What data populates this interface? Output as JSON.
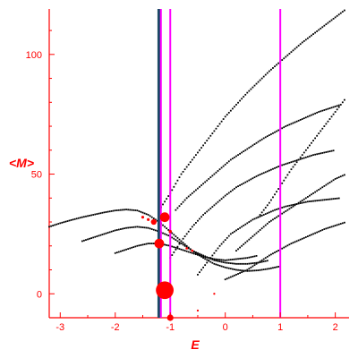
{
  "chart_data": {
    "type": "scatter",
    "xlabel": "E",
    "ylabel": "<M>",
    "xlim": [
      -3.2,
      2.25
    ],
    "ylim": [
      -10,
      119
    ],
    "x_ticks": [
      -3,
      -2,
      -1,
      0,
      1,
      2
    ],
    "y_ticks": [
      0,
      50,
      100
    ],
    "colors": {
      "axis": "#ff0000",
      "points": "#000000",
      "bubbles": "#ff0000",
      "line_thick": "#1a4a66",
      "line_accent": "#ff00ff"
    },
    "vertical_lines": [
      {
        "x": -1.2,
        "color": "#1a4a66",
        "style": "thick"
      },
      {
        "x": -1.17,
        "color": "#ff00ff",
        "style": "thin"
      },
      {
        "x": -1.0,
        "color": "#ff00ff",
        "style": "thin"
      },
      {
        "x": 1.0,
        "color": "#ff00ff",
        "style": "thin"
      }
    ],
    "bubbles": [
      {
        "x": -1.1,
        "y": 1.5,
        "r": 2.2
      },
      {
        "x": -1.1,
        "y": 32,
        "r": 1.2
      },
      {
        "x": -1.2,
        "y": 21,
        "r": 1.2
      },
      {
        "x": -1.3,
        "y": 30,
        "r": 0.7
      },
      {
        "x": -1.0,
        "y": -10,
        "r": 0.8
      },
      {
        "x": -1.0,
        "y": 26,
        "r": 0.4
      },
      {
        "x": -1.5,
        "y": 32,
        "r": 0.35
      },
      {
        "x": -1.4,
        "y": 31,
        "r": 0.35
      },
      {
        "x": -0.7,
        "y": 19,
        "r": 0.3
      },
      {
        "x": -0.6,
        "y": 18,
        "r": 0.3
      },
      {
        "x": -0.2,
        "y": 0,
        "r": 0.25
      },
      {
        "x": -0.5,
        "y": -7,
        "r": 0.25
      }
    ],
    "series": [
      {
        "points": [
          [
            -3.2,
            28
          ],
          [
            -3.0,
            29.5
          ],
          [
            -2.8,
            30.8
          ],
          [
            -2.6,
            32
          ],
          [
            -2.4,
            33
          ],
          [
            -2.2,
            34
          ],
          [
            -2.0,
            34.8
          ],
          [
            -1.8,
            35.2
          ],
          [
            -1.6,
            34.8
          ],
          [
            -1.4,
            33
          ],
          [
            -1.2,
            30
          ],
          [
            -1.0,
            26
          ],
          [
            -0.8,
            22
          ],
          [
            -0.6,
            18
          ],
          [
            -0.4,
            15
          ],
          [
            -0.2,
            12.5
          ],
          [
            0.0,
            11
          ],
          [
            0.2,
            10
          ],
          [
            0.4,
            9.5
          ],
          [
            0.6,
            9.8
          ],
          [
            0.8,
            10.5
          ],
          [
            1.0,
            11.5
          ]
        ]
      },
      {
        "points": [
          [
            -2.6,
            22
          ],
          [
            -2.4,
            23.5
          ],
          [
            -2.2,
            25
          ],
          [
            -2.0,
            26.5
          ],
          [
            -1.8,
            27.5
          ],
          [
            -1.6,
            28
          ],
          [
            -1.4,
            27.5
          ],
          [
            -1.2,
            26
          ],
          [
            -1.0,
            24
          ],
          [
            -0.8,
            21
          ],
          [
            -0.6,
            18
          ],
          [
            -0.4,
            16
          ],
          [
            -0.2,
            14
          ],
          [
            0.0,
            13
          ],
          [
            0.2,
            12.5
          ],
          [
            0.4,
            12.5
          ],
          [
            0.6,
            13
          ],
          [
            0.8,
            14
          ]
        ]
      },
      {
        "points": [
          [
            -2.0,
            17
          ],
          [
            -1.8,
            18.5
          ],
          [
            -1.6,
            20
          ],
          [
            -1.4,
            21
          ],
          [
            -1.2,
            21
          ],
          [
            -1.0,
            20
          ],
          [
            -0.8,
            18.5
          ],
          [
            -0.6,
            17
          ],
          [
            -0.4,
            15.5
          ],
          [
            -0.2,
            14.5
          ],
          [
            0.0,
            14
          ],
          [
            0.2,
            14.5
          ],
          [
            0.4,
            15
          ],
          [
            0.6,
            16
          ]
        ]
      },
      {
        "points": [
          [
            -0.9,
            35
          ],
          [
            -0.7,
            40
          ],
          [
            -0.5,
            44
          ],
          [
            -0.3,
            48
          ],
          [
            -0.1,
            52
          ],
          [
            0.1,
            56
          ],
          [
            0.3,
            59
          ],
          [
            0.5,
            62
          ],
          [
            0.7,
            65
          ],
          [
            0.9,
            67.5
          ],
          [
            1.1,
            70
          ],
          [
            1.3,
            72
          ],
          [
            1.5,
            74
          ],
          [
            1.7,
            76
          ],
          [
            1.9,
            77.5
          ],
          [
            2.1,
            79
          ]
        ]
      },
      {
        "points": [
          [
            -1.0,
            15
          ],
          [
            -0.8,
            22
          ],
          [
            -0.6,
            28
          ],
          [
            -0.4,
            33
          ],
          [
            -0.2,
            37
          ],
          [
            0.0,
            41
          ],
          [
            0.2,
            44.5
          ],
          [
            0.4,
            47
          ],
          [
            0.6,
            49.5
          ],
          [
            0.8,
            51.5
          ],
          [
            1.0,
            53.5
          ],
          [
            1.2,
            55
          ],
          [
            1.4,
            56.5
          ],
          [
            1.6,
            58
          ],
          [
            1.8,
            59
          ],
          [
            2.0,
            60
          ]
        ]
      },
      {
        "points": [
          [
            -0.5,
            8
          ],
          [
            -0.3,
            14
          ],
          [
            -0.1,
            20
          ],
          [
            0.1,
            25
          ],
          [
            0.3,
            28
          ],
          [
            0.5,
            31
          ],
          [
            0.7,
            33
          ],
          [
            0.9,
            35
          ],
          [
            1.1,
            36.5
          ],
          [
            1.3,
            37.5
          ],
          [
            1.5,
            38.5
          ],
          [
            1.7,
            39
          ],
          [
            1.9,
            39.5
          ],
          [
            2.1,
            40
          ]
        ]
      },
      {
        "points": [
          [
            -1.2,
            35
          ],
          [
            -1.0,
            42
          ],
          [
            -0.8,
            50
          ],
          [
            -0.6,
            56
          ],
          [
            -0.4,
            62
          ],
          [
            -0.2,
            68
          ],
          [
            0.0,
            74
          ],
          [
            0.2,
            79
          ],
          [
            0.4,
            84
          ],
          [
            0.6,
            88.5
          ],
          [
            0.8,
            93
          ],
          [
            1.0,
            97
          ],
          [
            1.2,
            101
          ],
          [
            1.4,
            105
          ],
          [
            1.6,
            108.5
          ],
          [
            1.8,
            112
          ],
          [
            2.0,
            115.5
          ],
          [
            2.2,
            119
          ]
        ]
      },
      {
        "points": [
          [
            0.0,
            6
          ],
          [
            0.2,
            8
          ],
          [
            0.4,
            10
          ],
          [
            0.6,
            13
          ],
          [
            0.8,
            16
          ],
          [
            1.0,
            18.5
          ],
          [
            1.2,
            21
          ],
          [
            1.4,
            23
          ],
          [
            1.6,
            25
          ],
          [
            1.8,
            27
          ],
          [
            2.0,
            28.5
          ],
          [
            2.2,
            30
          ]
        ]
      },
      {
        "points": [
          [
            0.6,
            32
          ],
          [
            0.8,
            38
          ],
          [
            1.0,
            45
          ],
          [
            1.2,
            52
          ],
          [
            1.4,
            58
          ],
          [
            1.6,
            64
          ],
          [
            1.8,
            70
          ],
          [
            2.0,
            76
          ],
          [
            2.2,
            82
          ]
        ]
      },
      {
        "points": [
          [
            0.2,
            18
          ],
          [
            0.4,
            22
          ],
          [
            0.6,
            26
          ],
          [
            0.8,
            30
          ],
          [
            1.0,
            33
          ],
          [
            1.2,
            36
          ],
          [
            1.4,
            39
          ],
          [
            1.6,
            42
          ],
          [
            1.8,
            45
          ],
          [
            2.0,
            48
          ],
          [
            2.2,
            50
          ]
        ]
      }
    ]
  }
}
